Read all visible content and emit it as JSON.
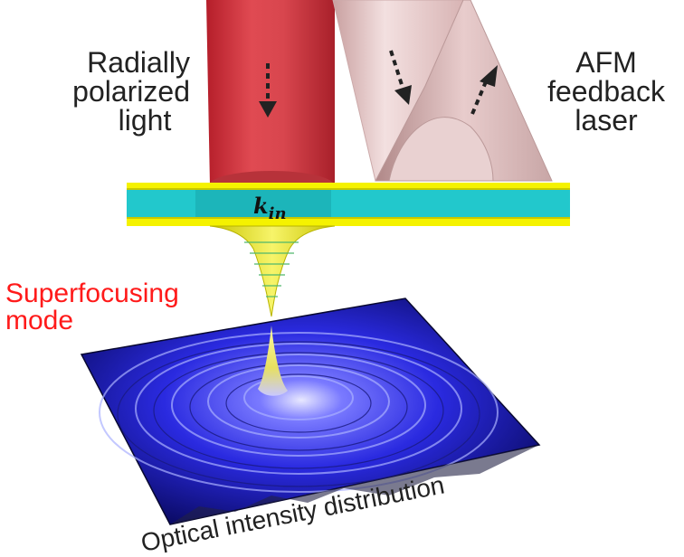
{
  "labels": {
    "left_beam": [
      "Radially",
      "polarized",
      "light"
    ],
    "right_beam": [
      "AFM",
      "feedback",
      "laser"
    ],
    "wavevector_base": "k",
    "wavevector_sub": "in",
    "mode": [
      "Superfocusing",
      "mode"
    ],
    "surface": "Optical intensity distribution"
  },
  "colors": {
    "mode_label": "#ff1a1a",
    "text": "#222222",
    "left_beam": "#d9424a",
    "right_beam": "#e8c8c8",
    "waveguide_core": "#22c8cc",
    "waveguide_cladding": "#f5f200",
    "tip": "#e8e600",
    "surface": "#2424d8",
    "surface_peak": "#f0f060"
  },
  "icons": [
    "dashed-arrow-down-icon",
    "dashed-arrow-up-icon"
  ]
}
